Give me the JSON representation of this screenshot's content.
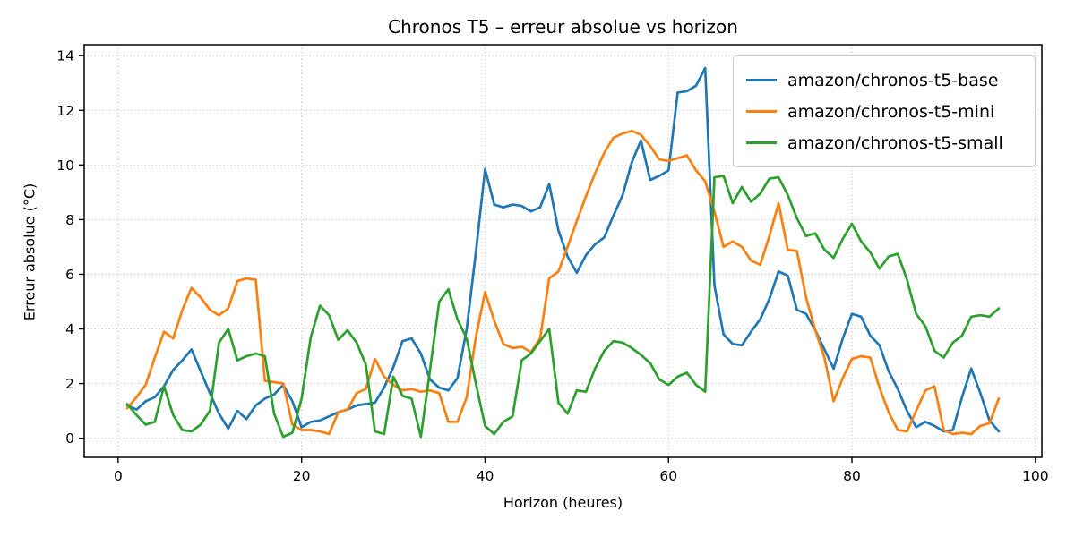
{
  "chart_data": {
    "type": "line",
    "title": "Chronos T5 – erreur absolue vs horizon",
    "xlabel": "Horizon (heures)",
    "ylabel": "Erreur absolue (°C)",
    "xlim": [
      -3.7,
      100.7
    ],
    "ylim": [
      -0.7,
      14.4
    ],
    "x_ticks": [
      0,
      20,
      40,
      60,
      80,
      100
    ],
    "y_ticks": [
      0,
      2,
      4,
      6,
      8,
      10,
      12,
      14
    ],
    "grid": true,
    "grid_color": "#c0c0c0",
    "spine_color": "#000000",
    "background": "#ffffff",
    "legend_position": "upper right",
    "x_start": 1,
    "x_step": 1,
    "series": [
      {
        "name": "amazon/chronos-t5-base",
        "color": "#1f77b4",
        "values": [
          1.2,
          1.05,
          1.35,
          1.5,
          1.9,
          2.5,
          2.85,
          3.25,
          2.45,
          1.65,
          0.9,
          0.35,
          1.0,
          0.7,
          1.2,
          1.45,
          1.6,
          1.95,
          1.35,
          0.4,
          0.6,
          0.65,
          0.8,
          0.95,
          1.05,
          1.2,
          1.25,
          1.3,
          1.85,
          2.6,
          3.55,
          3.65,
          3.1,
          2.15,
          1.85,
          1.75,
          2.2,
          4.0,
          6.8,
          9.85,
          8.55,
          8.45,
          8.55,
          8.5,
          8.3,
          8.45,
          9.3,
          7.6,
          6.65,
          6.05,
          6.7,
          7.1,
          7.35,
          8.15,
          8.9,
          10.1,
          10.9,
          9.45,
          9.6,
          9.8,
          12.65,
          12.7,
          12.9,
          13.55,
          5.6,
          3.8,
          3.45,
          3.4,
          3.9,
          4.35,
          5.1,
          6.1,
          5.95,
          4.7,
          4.55,
          3.95,
          3.25,
          2.55,
          3.65,
          4.55,
          4.45,
          3.75,
          3.4,
          2.45,
          1.8,
          1.0,
          0.4,
          0.6,
          0.45,
          0.25,
          0.3,
          1.5,
          2.55,
          1.65,
          0.65,
          0.25
        ]
      },
      {
        "name": "amazon/chronos-t5-mini",
        "color": "#ff7f0e",
        "values": [
          1.1,
          1.5,
          1.95,
          2.95,
          3.9,
          3.65,
          4.7,
          5.5,
          5.15,
          4.7,
          4.5,
          4.75,
          5.75,
          5.85,
          5.8,
          2.1,
          2.05,
          2.0,
          0.5,
          0.3,
          0.3,
          0.25,
          0.15,
          0.95,
          1.05,
          1.65,
          1.8,
          2.9,
          2.25,
          1.95,
          1.75,
          1.8,
          1.7,
          1.75,
          1.65,
          0.6,
          0.6,
          1.5,
          3.7,
          5.35,
          4.3,
          3.45,
          3.3,
          3.35,
          3.15,
          3.65,
          5.85,
          6.1,
          7.0,
          7.95,
          8.85,
          9.7,
          10.45,
          11.0,
          11.15,
          11.25,
          11.1,
          10.7,
          10.2,
          10.15,
          10.25,
          10.35,
          9.8,
          9.4,
          8.3,
          7.0,
          7.2,
          7.0,
          6.5,
          6.35,
          7.4,
          8.6,
          6.9,
          6.85,
          5.15,
          3.95,
          2.95,
          1.35,
          2.2,
          2.9,
          3.0,
          2.95,
          1.85,
          0.95,
          0.3,
          0.25,
          1.0,
          1.75,
          1.9,
          0.3,
          0.15,
          0.2,
          0.15,
          0.45,
          0.55,
          1.45
        ]
      },
      {
        "name": "amazon/chronos-t5-small",
        "color": "#2ca02c",
        "values": [
          1.25,
          0.85,
          0.5,
          0.6,
          1.9,
          0.85,
          0.3,
          0.25,
          0.5,
          1.0,
          3.5,
          4.0,
          2.85,
          3.0,
          3.1,
          3.0,
          0.9,
          0.05,
          0.2,
          1.45,
          3.7,
          4.85,
          4.5,
          3.6,
          3.95,
          3.5,
          2.7,
          0.25,
          0.15,
          2.25,
          1.55,
          1.45,
          0.05,
          2.5,
          5.0,
          5.45,
          4.35,
          3.65,
          2.0,
          0.45,
          0.15,
          0.6,
          0.8,
          2.85,
          3.1,
          3.55,
          4.0,
          1.3,
          0.9,
          1.75,
          1.7,
          2.55,
          3.2,
          3.55,
          3.5,
          3.3,
          3.05,
          2.75,
          2.15,
          1.95,
          2.25,
          2.4,
          1.95,
          1.7,
          9.55,
          9.6,
          8.6,
          9.2,
          8.65,
          8.95,
          9.5,
          9.55,
          8.9,
          8.05,
          7.4,
          7.5,
          6.9,
          6.6,
          7.3,
          7.85,
          7.2,
          6.8,
          6.2,
          6.65,
          6.75,
          5.8,
          4.55,
          4.1,
          3.2,
          2.95,
          3.5,
          3.75,
          4.45,
          4.5,
          4.45,
          4.75
        ]
      }
    ]
  }
}
